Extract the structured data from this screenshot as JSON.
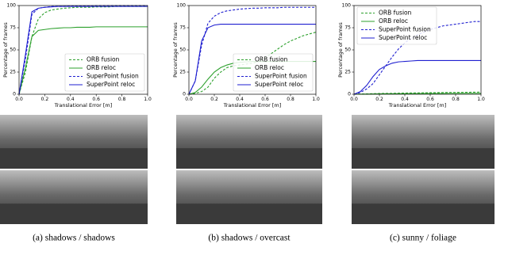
{
  "chart_data": [
    {
      "type": "line",
      "caption": "(a) shadows / shadows",
      "xlabel": "Translational Error [m]",
      "ylabel": "Percentage of frames",
      "x": [
        0,
        0.05,
        0.1,
        0.15,
        0.2,
        0.25,
        0.3,
        0.35,
        0.4,
        0.45,
        0.5,
        0.55,
        0.6,
        0.65,
        0.7,
        0.75,
        0.8,
        0.85,
        0.9,
        0.95,
        1
      ],
      "xlim": [
        0,
        1
      ],
      "ylim": [
        0,
        100
      ],
      "xticks": [
        {
          "value": 0,
          "label": "0.0"
        },
        0.2,
        0.4,
        0.6,
        0.8,
        {
          "value": 1,
          "label": "1.0"
        }
      ],
      "yticks": [
        0,
        25,
        50,
        75,
        100
      ],
      "legend": "lower right",
      "series": [
        {
          "name": "ORB fusion",
          "color": "#2ca02c",
          "linestyle": "dashed",
          "values": [
            0,
            25,
            65,
            85,
            92,
            95,
            96,
            97,
            97.5,
            98,
            98,
            98,
            98.5,
            98.5,
            98.5,
            99,
            99,
            99,
            99,
            99,
            99
          ]
        },
        {
          "name": "ORB reloc",
          "color": "#2ca02c",
          "linestyle": "solid",
          "values": [
            0,
            30,
            65,
            72,
            73,
            74,
            74.5,
            75,
            75,
            75.5,
            75.5,
            75.5,
            76,
            76,
            76,
            76,
            76,
            76,
            76,
            76,
            76
          ]
        },
        {
          "name": "SuperPoint fusion",
          "color": "#1f1fd0",
          "linestyle": "dashed",
          "values": [
            0,
            40,
            90,
            97,
            98,
            99,
            99,
            99,
            99.5,
            99.5,
            99.5,
            99.5,
            100,
            100,
            100,
            100,
            100,
            100,
            100,
            100,
            100
          ]
        },
        {
          "name": "SuperPoint reloc",
          "color": "#1f1fd0",
          "linestyle": "solid",
          "values": [
            0,
            45,
            93,
            97,
            98,
            98.5,
            99,
            99,
            99,
            99,
            99,
            99,
            99,
            99,
            99,
            99,
            99,
            99,
            99,
            99,
            99
          ]
        }
      ]
    },
    {
      "type": "line",
      "caption": "(b) shadows / overcast",
      "xlabel": "Translational Error [m]",
      "ylabel": "Percentage of frames",
      "x": [
        0,
        0.05,
        0.1,
        0.15,
        0.2,
        0.25,
        0.3,
        0.35,
        0.4,
        0.45,
        0.5,
        0.55,
        0.6,
        0.65,
        0.7,
        0.75,
        0.8,
        0.85,
        0.9,
        0.95,
        1
      ],
      "xlim": [
        0,
        1
      ],
      "ylim": [
        0,
        100
      ],
      "xticks": [
        {
          "value": 0,
          "label": "0.0"
        },
        0.2,
        0.4,
        0.6,
        0.8,
        {
          "value": 1,
          "label": "1.0"
        }
      ],
      "yticks": [
        0,
        25,
        50,
        75,
        100
      ],
      "legend": "lower right",
      "series": [
        {
          "name": "ORB fusion",
          "color": "#2ca02c",
          "linestyle": "dashed",
          "values": [
            0,
            1,
            3,
            8,
            18,
            25,
            30,
            32,
            33,
            34,
            35,
            37,
            41,
            46,
            51,
            56,
            60,
            63,
            66,
            68,
            70
          ]
        },
        {
          "name": "ORB reloc",
          "color": "#2ca02c",
          "linestyle": "solid",
          "values": [
            0,
            2,
            8,
            17,
            25,
            30,
            33,
            35,
            36,
            36.5,
            37,
            37,
            37,
            37,
            37,
            37,
            37,
            37,
            37,
            37,
            37
          ]
        },
        {
          "name": "SuperPoint fusion",
          "color": "#1f1fd0",
          "linestyle": "dashed",
          "values": [
            0,
            15,
            55,
            80,
            88,
            92,
            94,
            95,
            96,
            96.5,
            97,
            97,
            97.5,
            97.5,
            97.5,
            98,
            98,
            98,
            98,
            98,
            98
          ]
        },
        {
          "name": "SuperPoint reloc",
          "color": "#1f1fd0",
          "linestyle": "solid",
          "values": [
            0,
            15,
            60,
            75,
            78,
            79,
            79,
            79,
            79,
            79,
            79,
            79,
            79,
            79,
            79,
            79,
            79,
            79,
            79,
            79,
            79
          ]
        }
      ]
    },
    {
      "type": "line",
      "caption": "(c) sunny / foliage",
      "xlabel": "Translational Error [m]",
      "ylabel": "Percentage of frames",
      "x": [
        0,
        0.05,
        0.1,
        0.15,
        0.2,
        0.25,
        0.3,
        0.35,
        0.4,
        0.45,
        0.5,
        0.55,
        0.6,
        0.65,
        0.7,
        0.75,
        0.8,
        0.85,
        0.9,
        0.95,
        1
      ],
      "xlim": [
        0,
        1
      ],
      "ylim": [
        0,
        100
      ],
      "xticks": [
        {
          "value": 0,
          "label": "0.0"
        },
        0.2,
        0.4,
        0.6,
        0.8,
        {
          "value": 1,
          "label": "1.0"
        }
      ],
      "yticks": [
        0,
        25,
        50,
        75,
        100
      ],
      "legend": "upper left",
      "series": [
        {
          "name": "ORB fusion",
          "color": "#2ca02c",
          "linestyle": "dashed",
          "values": [
            0,
            0.2,
            0.4,
            0.6,
            0.8,
            1,
            1,
            1.2,
            1.3,
            1.4,
            1.5,
            1.6,
            1.7,
            1.8,
            1.9,
            2,
            2,
            2.1,
            2.2,
            2.3,
            2.4
          ]
        },
        {
          "name": "ORB reloc",
          "color": "#2ca02c",
          "linestyle": "solid",
          "values": [
            0,
            0.1,
            0.2,
            0.3,
            0.4,
            0.5,
            0.5,
            0.6,
            0.6,
            0.7,
            0.7,
            0.8,
            0.8,
            0.9,
            0.9,
            1,
            1,
            1,
            1,
            1,
            1
          ]
        },
        {
          "name": "SuperPoint fusion",
          "color": "#1f1fd0",
          "linestyle": "dashed",
          "values": [
            0,
            2,
            6,
            12,
            22,
            32,
            42,
            51,
            58,
            63,
            67,
            70,
            73,
            75,
            77,
            78,
            79,
            80,
            81,
            82,
            82
          ]
        },
        {
          "name": "SuperPoint reloc",
          "color": "#1f1fd0",
          "linestyle": "solid",
          "values": [
            0,
            3,
            10,
            20,
            28,
            32,
            35,
            36.5,
            37,
            37.5,
            38,
            38,
            38,
            38,
            38,
            38,
            38,
            38,
            38,
            38,
            38
          ]
        }
      ]
    }
  ]
}
